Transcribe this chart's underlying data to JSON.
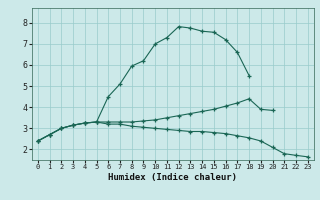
{
  "xlabel": "Humidex (Indice chaleur)",
  "bg_color": "#cce9e9",
  "grid_color": "#99cccc",
  "line_color": "#1a6655",
  "xlim": [
    -0.5,
    23.5
  ],
  "ylim": [
    1.5,
    8.7
  ],
  "xticks": [
    0,
    1,
    2,
    3,
    4,
    5,
    6,
    7,
    8,
    9,
    10,
    11,
    12,
    13,
    14,
    15,
    16,
    17,
    18,
    19,
    20,
    21,
    22,
    23
  ],
  "yticks": [
    2,
    3,
    4,
    5,
    6,
    7,
    8
  ],
  "series": [
    {
      "x": [
        0,
        1,
        2,
        3,
        4,
        5,
        6,
        7,
        8,
        9,
        10,
        11,
        12,
        13,
        14,
        15,
        16,
        17,
        18
      ],
      "y": [
        2.4,
        2.7,
        3.0,
        3.15,
        3.25,
        3.3,
        4.5,
        5.1,
        5.95,
        6.2,
        7.0,
        7.3,
        7.82,
        7.75,
        7.6,
        7.55,
        7.2,
        6.6,
        5.5
      ]
    },
    {
      "x": [
        0,
        1,
        2,
        3,
        4,
        5,
        6,
        7,
        8,
        9,
        10,
        11,
        12,
        13,
        14,
        15,
        16,
        17,
        18,
        19,
        20
      ],
      "y": [
        2.4,
        2.7,
        3.0,
        3.15,
        3.25,
        3.3,
        3.3,
        3.3,
        3.3,
        3.35,
        3.4,
        3.5,
        3.6,
        3.7,
        3.8,
        3.9,
        4.05,
        4.2,
        4.4,
        3.9,
        3.85
      ]
    },
    {
      "x": [
        0,
        1,
        2,
        3,
        4,
        5,
        6,
        7,
        8,
        9,
        10,
        11,
        12,
        13,
        14,
        15,
        16,
        17,
        18,
        19,
        20,
        21,
        22,
        23
      ],
      "y": [
        2.4,
        2.7,
        3.0,
        3.15,
        3.25,
        3.3,
        3.2,
        3.2,
        3.1,
        3.05,
        3.0,
        2.95,
        2.9,
        2.85,
        2.85,
        2.8,
        2.75,
        2.65,
        2.55,
        2.4,
        2.1,
        1.8,
        1.72,
        1.65
      ]
    }
  ]
}
